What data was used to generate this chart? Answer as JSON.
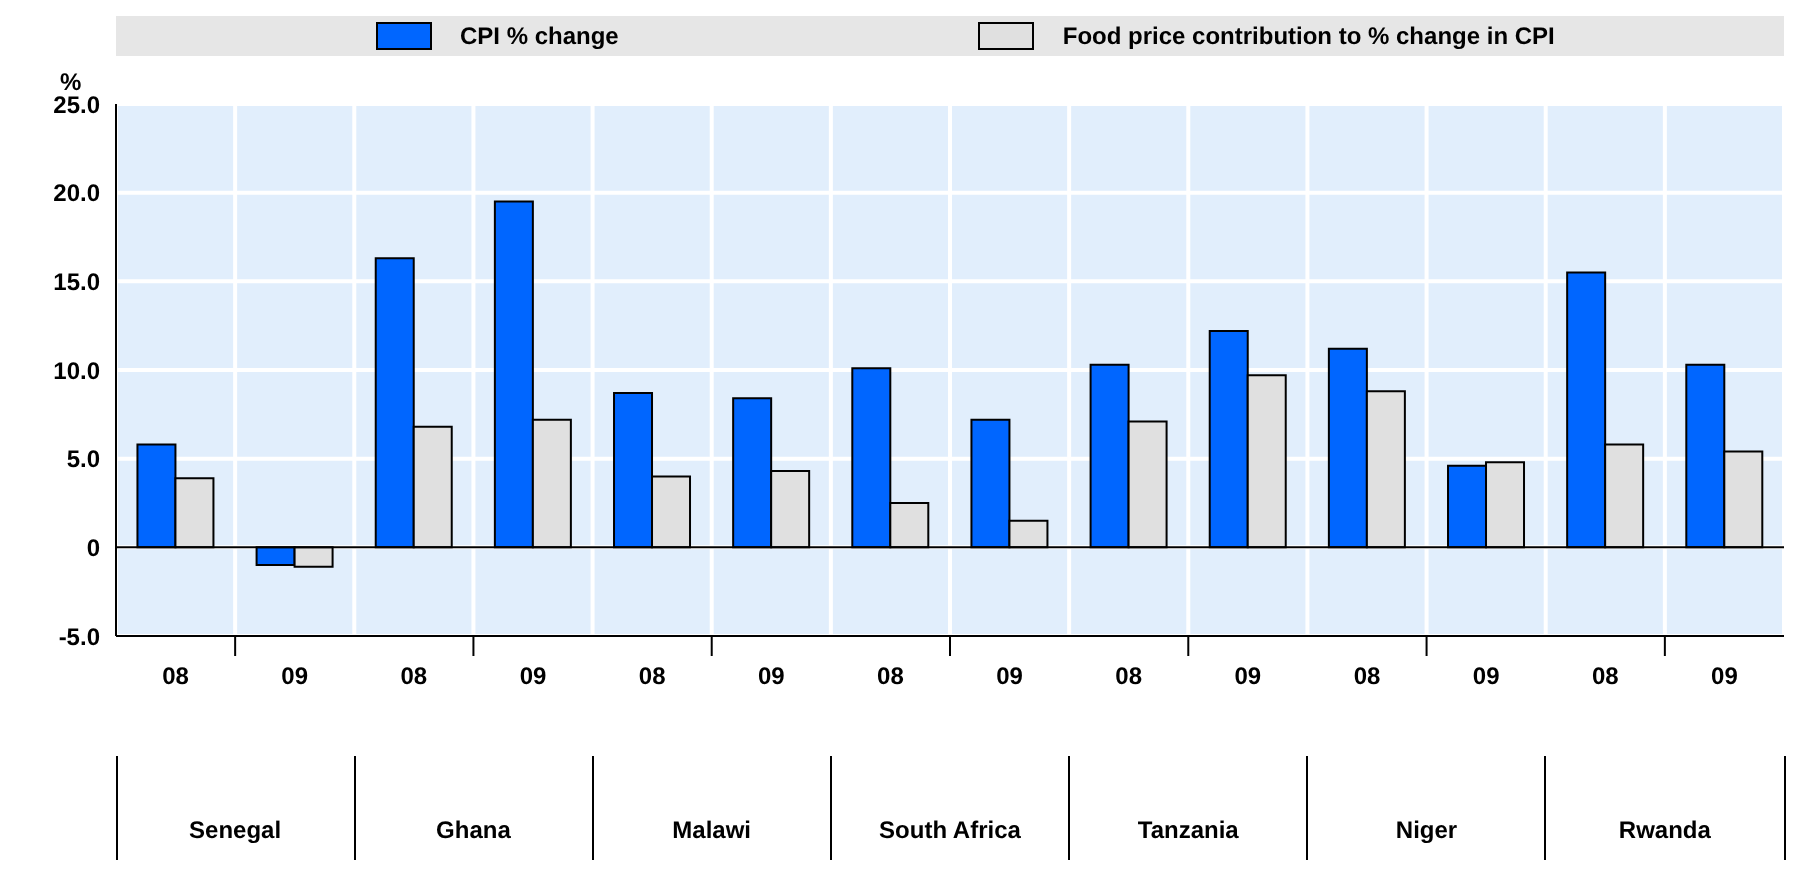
{
  "chart_data": {
    "type": "bar",
    "ylabel": "%",
    "categories": [
      "08",
      "09",
      "08",
      "09",
      "08",
      "09",
      "08",
      "09",
      "08",
      "09",
      "08",
      "09",
      "08",
      "09"
    ],
    "series": [
      {
        "name": "CPI % change",
        "color": "#0066ff",
        "values": [
          5.8,
          -1.0,
          16.3,
          19.5,
          8.7,
          8.4,
          10.1,
          7.2,
          10.3,
          12.2,
          11.2,
          4.6,
          15.5,
          10.3
        ]
      },
      {
        "name": "Food price contribution to % change in CPI",
        "color": "#e0e0e0",
        "values": [
          3.9,
          -1.1,
          6.8,
          7.2,
          4.0,
          4.3,
          2.5,
          1.5,
          7.1,
          9.7,
          8.8,
          4.8,
          5.8,
          5.4
        ]
      }
    ],
    "annotations": [
      "Senegal",
      "Ghana",
      "Malawi",
      "South Africa",
      "Tanzania",
      "Niger",
      "Rwanda"
    ],
    "ylim": [
      -5,
      25
    ],
    "yticks": [
      {
        "value": -5,
        "label": "-5.0"
      },
      {
        "value": 0,
        "label": "0"
      },
      {
        "value": 5,
        "label": "5.0"
      },
      {
        "value": 10,
        "label": "10.0"
      },
      {
        "value": 15,
        "label": "15.0"
      },
      {
        "value": 20,
        "label": "20.0"
      },
      {
        "value": 25,
        "label": "25.0"
      }
    ],
    "grid": true,
    "legend": "top"
  }
}
